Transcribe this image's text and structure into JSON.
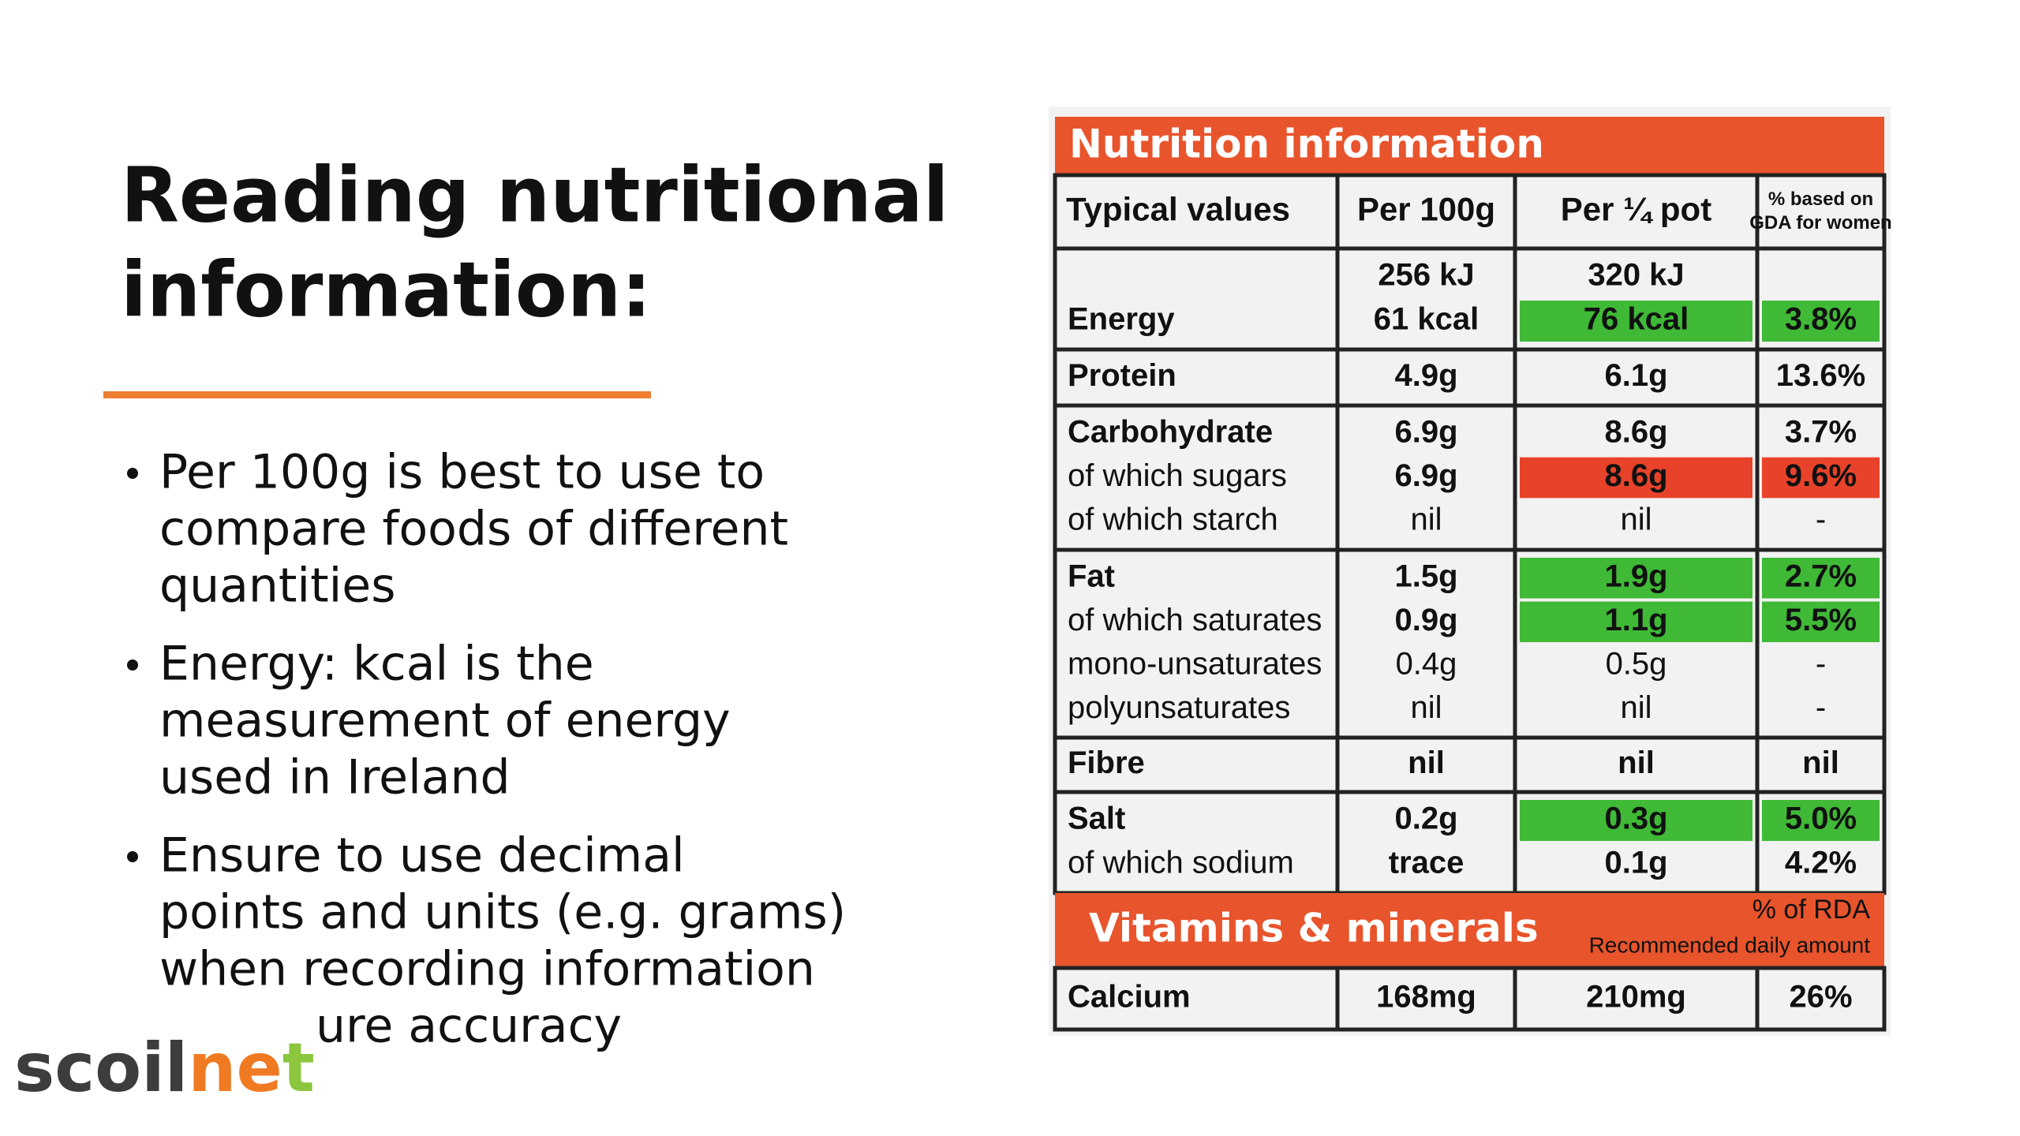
{
  "slide": {
    "title": [
      "Reading nutritional",
      "information:"
    ],
    "bullets": [
      [
        "Per 100g is best to use to",
        "compare foods of different",
        "quantities"
      ],
      [
        "Energy: kcal is the",
        "measurement of energy",
        "used in Ireland"
      ],
      [
        "Ensure to use decimal",
        "points and units (e.g. grams)",
        "when recording information",
        "ure accuracy"
      ]
    ],
    "logo": [
      "scoil",
      "ne",
      "t"
    ]
  },
  "table": {
    "title": "Nutrition information",
    "header": [
      [
        "Typical values"
      ],
      [
        "Per 100g"
      ],
      [
        "Per ¼ pot"
      ],
      [
        "% based on",
        "GDA for women"
      ]
    ],
    "rows": [
      {
        "cells": [
          [
            "Energy"
          ],
          [
            "256 kJ",
            "61 kcal"
          ],
          [
            "320 kJ",
            {
              "text": "76 kcal",
              "hl": "green"
            }
          ],
          [
            {
              "text": "3.8%",
              "hl": "green"
            }
          ]
        ]
      },
      {
        "cells": [
          [
            "Protein"
          ],
          [
            "4.9g"
          ],
          [
            "6.1g"
          ],
          [
            "13.6%"
          ]
        ]
      },
      {
        "cells": [
          [
            "Carbohydrate",
            "of which sugars",
            "of which starch"
          ],
          [
            "6.9g",
            "6.9g",
            "nil"
          ],
          [
            "8.6g",
            {
              "text": "8.6g",
              "hl": "red"
            },
            "nil"
          ],
          [
            "3.7%",
            {
              "text": "9.6%",
              "hl": "red"
            },
            "-"
          ]
        ]
      },
      {
        "cells": [
          [
            "Fat",
            "of which saturates",
            "mono-unsaturates",
            "polyunsaturates"
          ],
          [
            "1.5g",
            "0.9g",
            "0.4g",
            "nil"
          ],
          [
            {
              "text": "1.9g",
              "hl": "green"
            },
            {
              "text": "1.1g",
              "hl": "green"
            },
            "0.5g",
            "nil"
          ],
          [
            {
              "text": "2.7%",
              "hl": "green"
            },
            {
              "text": "5.5%",
              "hl": "green"
            },
            "-",
            "-"
          ]
        ]
      },
      {
        "cells": [
          [
            "Fibre"
          ],
          [
            "nil"
          ],
          [
            "nil"
          ],
          [
            "nil"
          ]
        ]
      },
      {
        "cells": [
          [
            "Salt",
            "of which sodium"
          ],
          [
            "0.2g",
            "trace"
          ],
          [
            {
              "text": "0.3g",
              "hl": "green"
            },
            "0.1g"
          ],
          [
            {
              "text": "5.0%",
              "hl": "green"
            },
            "4.2%"
          ]
        ]
      }
    ],
    "vitamins": {
      "title": "Vitamins & minerals",
      "rda": "% of RDA",
      "rda_note": "Recommended daily amount"
    },
    "calcium": [
      "Calcium",
      "168mg",
      "210mg",
      "26%"
    ]
  }
}
